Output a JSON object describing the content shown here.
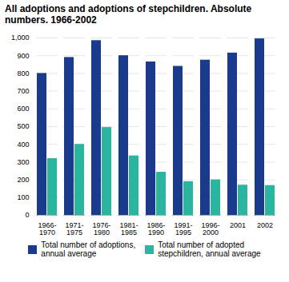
{
  "chart_data": {
    "type": "bar",
    "title": "All adoptions and adoptions of stepchildren. Absolute\nnumbers. 1966-2002",
    "categories": [
      "1966-\n1970",
      "1971-\n1975",
      "1976-\n1980",
      "1981-\n1985",
      "1986-\n1990",
      "1991-\n1995",
      "1996-\n2000",
      "2001",
      "2002"
    ],
    "series": [
      {
        "name": "Total number of adoptions,\nannual average",
        "color": "#1a3a8c",
        "values": [
          800,
          890,
          985,
          900,
          865,
          840,
          875,
          915,
          995
        ]
      },
      {
        "name": "Total  number of adopted\nstepchildren, annual average",
        "color": "#2ab5a0",
        "values": [
          320,
          400,
          495,
          335,
          243,
          190,
          200,
          170,
          168
        ]
      }
    ],
    "ylim": [
      0,
      1000
    ],
    "yticks": [
      0,
      100,
      200,
      300,
      400,
      500,
      600,
      700,
      800,
      900,
      1000
    ],
    "grid": true,
    "legend": "bottom"
  }
}
